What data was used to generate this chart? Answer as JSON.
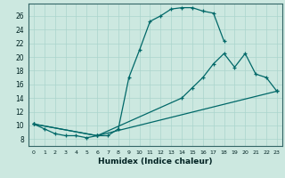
{
  "xlabel": "Humidex (Indice chaleur)",
  "background_color": "#cce8e0",
  "line_color": "#006868",
  "grid_color": "#aad4cc",
  "xlim": [
    -0.5,
    23.5
  ],
  "ylim": [
    7.0,
    27.8
  ],
  "xticks": [
    0,
    1,
    2,
    3,
    4,
    5,
    6,
    7,
    8,
    9,
    10,
    11,
    12,
    13,
    14,
    15,
    16,
    17,
    18,
    19,
    20,
    21,
    22,
    23
  ],
  "yticks": [
    8,
    10,
    12,
    14,
    16,
    18,
    20,
    22,
    24,
    26
  ],
  "curves": [
    {
      "x": [
        0,
        1,
        2,
        3,
        4,
        5,
        6,
        7,
        8,
        9,
        10,
        11,
        12,
        13,
        14,
        15,
        16,
        17,
        18
      ],
      "y": [
        10.2,
        9.5,
        8.8,
        8.5,
        8.5,
        8.2,
        8.5,
        8.5,
        9.5,
        17.0,
        21.0,
        25.2,
        26.0,
        27.0,
        27.2,
        27.2,
        26.7,
        26.4,
        22.3
      ]
    },
    {
      "x": [
        0,
        6,
        14,
        15,
        16,
        17,
        18,
        19,
        20,
        21,
        22,
        23
      ],
      "y": [
        10.2,
        8.5,
        14.0,
        15.5,
        17.0,
        19.0,
        20.5,
        18.5,
        20.5,
        17.5,
        17.0,
        15.0
      ]
    },
    {
      "x": [
        0,
        6,
        23
      ],
      "y": [
        10.2,
        8.5,
        15.0
      ]
    }
  ]
}
